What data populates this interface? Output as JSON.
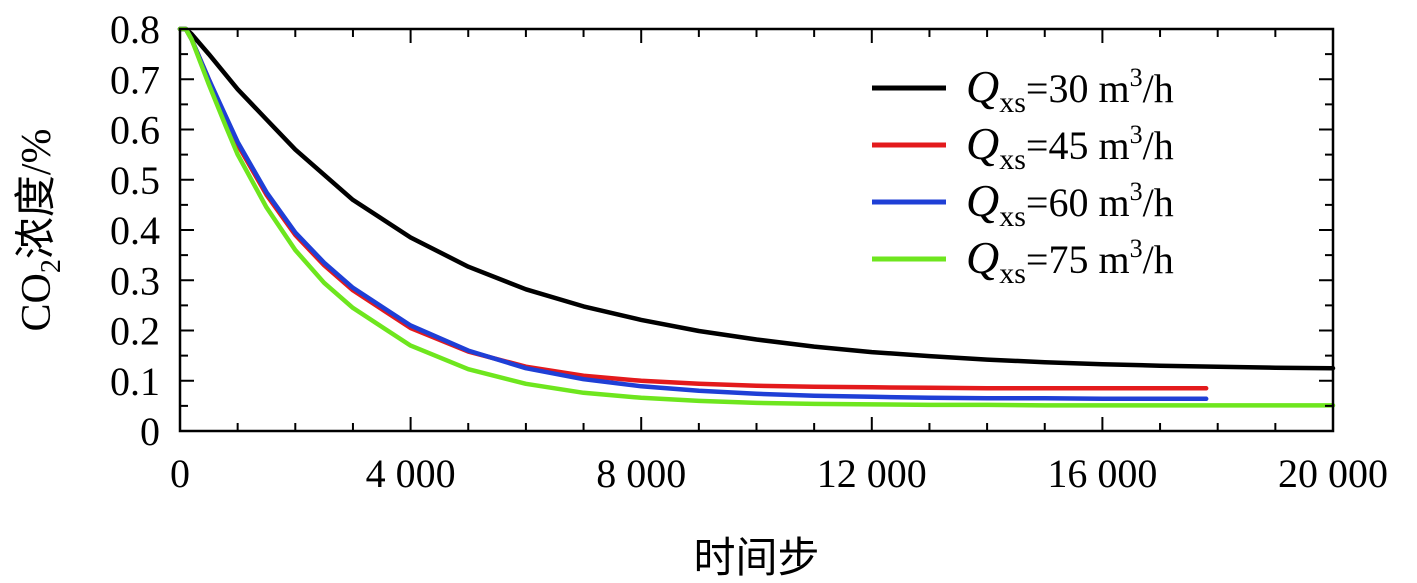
{
  "chart_data": {
    "type": "line",
    "xlabel": "时间步",
    "ylabel": {
      "prefix": "CO",
      "sub": "2",
      "suffix": "浓度/%"
    },
    "xlim": [
      0,
      20000
    ],
    "ylim": [
      0,
      0.8
    ],
    "x_ticks": [
      0,
      4000,
      8000,
      12000,
      16000,
      20000
    ],
    "x_tick_labels": [
      "0",
      "4 000",
      "8 000",
      "12 000",
      "16 000",
      "20 000"
    ],
    "y_ticks": [
      0,
      0.1,
      0.2,
      0.3,
      0.4,
      0.5,
      0.6,
      0.7,
      0.8
    ],
    "y_tick_labels": [
      "0",
      "0.1",
      "0.2",
      "0.3",
      "0.4",
      "0.5",
      "0.6",
      "0.7",
      "0.8"
    ],
    "grid": false,
    "legend_position": "top-right",
    "series": [
      {
        "legend": {
          "symbol": "Q",
          "sub": "xs",
          "text": "=30 m",
          "sup": "3",
          "unit": "/h"
        },
        "color": "#000000",
        "x": [
          0,
          100,
          200,
          500,
          1000,
          1500,
          2000,
          3000,
          4000,
          5000,
          6000,
          7000,
          8000,
          9000,
          10000,
          11000,
          12000,
          13000,
          14000,
          15000,
          16000,
          17000,
          18000,
          19000,
          20000
        ],
        "y": [
          0.8,
          0.8,
          0.79,
          0.75,
          0.68,
          0.62,
          0.56,
          0.46,
          0.385,
          0.327,
          0.282,
          0.248,
          0.221,
          0.199,
          0.182,
          0.168,
          0.157,
          0.149,
          0.142,
          0.137,
          0.133,
          0.13,
          0.128,
          0.126,
          0.125
        ]
      },
      {
        "legend": {
          "symbol": "Q",
          "sub": "xs",
          "text": "=45 m",
          "sup": "3",
          "unit": "/h"
        },
        "color": "#e31a1c",
        "x": [
          0,
          100,
          200,
          500,
          800,
          1000,
          1500,
          2000,
          2500,
          3000,
          4000,
          5000,
          6000,
          7000,
          8000,
          9000,
          10000,
          11000,
          12000,
          13000,
          14000,
          15000,
          16000,
          17000,
          17800
        ],
        "y": [
          0.8,
          0.8,
          0.78,
          0.7,
          0.62,
          0.57,
          0.47,
          0.39,
          0.33,
          0.28,
          0.205,
          0.158,
          0.128,
          0.11,
          0.1,
          0.094,
          0.09,
          0.088,
          0.087,
          0.086,
          0.085,
          0.085,
          0.085,
          0.085,
          0.085
        ]
      },
      {
        "legend": {
          "symbol": "Q",
          "sub": "xs",
          "text": "=60 m",
          "sup": "3",
          "unit": "/h"
        },
        "color": "#1f3fd6",
        "x": [
          0,
          100,
          200,
          500,
          800,
          1000,
          1500,
          2000,
          2500,
          3000,
          4000,
          5000,
          6000,
          7000,
          8000,
          9000,
          10000,
          11000,
          12000,
          13000,
          14000,
          15000,
          16000,
          17000,
          17800
        ],
        "y": [
          0.8,
          0.8,
          0.78,
          0.7,
          0.625,
          0.575,
          0.475,
          0.395,
          0.335,
          0.285,
          0.21,
          0.16,
          0.125,
          0.103,
          0.089,
          0.08,
          0.074,
          0.07,
          0.068,
          0.066,
          0.065,
          0.065,
          0.064,
          0.064,
          0.064
        ]
      },
      {
        "legend": {
          "symbol": "Q",
          "sub": "xs",
          "text": "=75 m",
          "sup": "3",
          "unit": "/h"
        },
        "color": "#6ee61e",
        "x": [
          0,
          100,
          200,
          500,
          800,
          1000,
          1500,
          2000,
          2500,
          3000,
          4000,
          5000,
          6000,
          7000,
          8000,
          9000,
          10000,
          11000,
          12000,
          13000,
          14000,
          15000,
          16000,
          17000,
          18000,
          19000,
          20000
        ],
        "y": [
          0.8,
          0.8,
          0.78,
          0.69,
          0.605,
          0.55,
          0.445,
          0.36,
          0.295,
          0.245,
          0.17,
          0.123,
          0.094,
          0.076,
          0.066,
          0.06,
          0.056,
          0.054,
          0.053,
          0.052,
          0.052,
          0.051,
          0.051,
          0.051,
          0.051,
          0.051,
          0.051
        ]
      }
    ]
  }
}
